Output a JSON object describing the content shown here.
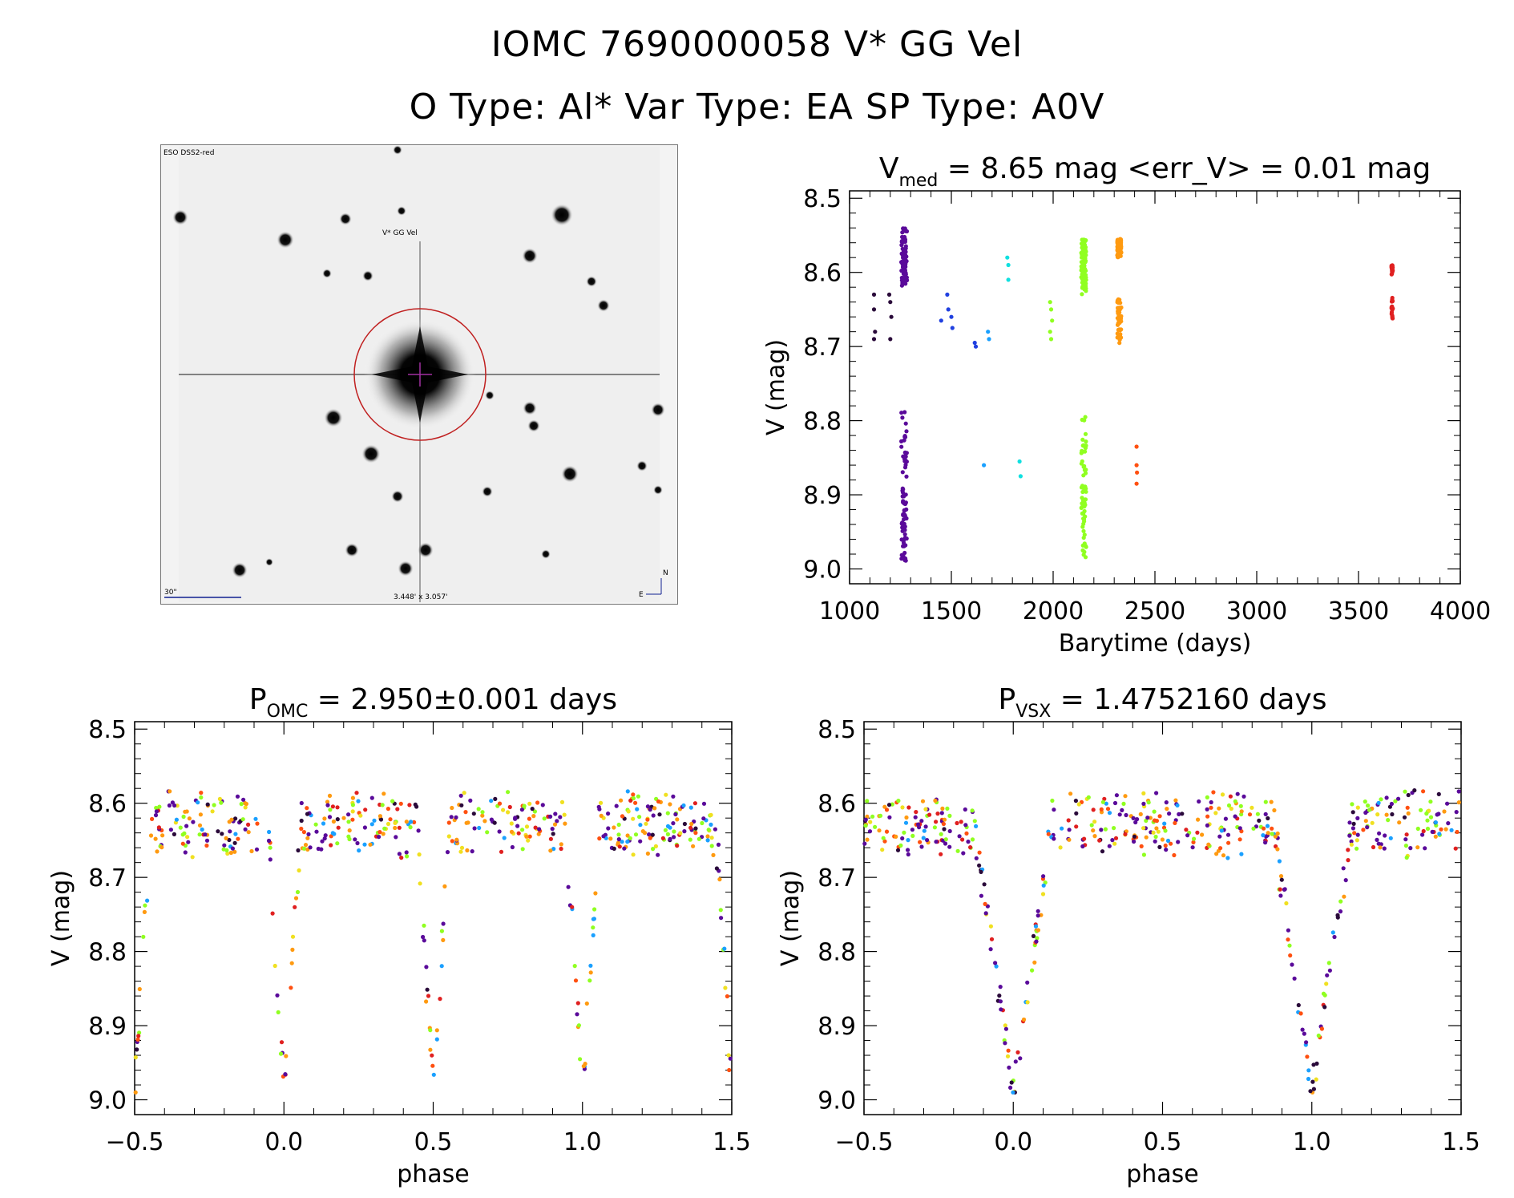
{
  "header": {
    "line1": "IOMC 7690000058   V* GG Vel",
    "line2": "O Type: Al*  Var Type: EA  SP Type: A0V"
  },
  "finder": {
    "survey_label": "ESO DSS2-red",
    "target_label": "V* GG Vel",
    "scale_label": "30\"",
    "fov_label": "3.448' x 3.057'",
    "compass_n": "N",
    "compass_e": "E"
  },
  "colors": {
    "palette": [
      "#2a0a3a",
      "#5a0a9a",
      "#2040e0",
      "#1aa0ff",
      "#10e0e0",
      "#90ff20",
      "#f0e020",
      "#ff9a10",
      "#ff5010",
      "#e02020"
    ]
  },
  "chart_data": [
    {
      "type": "scatter",
      "id": "lightcurve",
      "title": "V",
      "title_sub": "med",
      "title_rest": " = 8.65 mag <err_V> = 0.01 mag",
      "xlabel": "Barytime (days)",
      "ylabel": "V (mag)",
      "xlim": [
        1000,
        4000
      ],
      "ylim": [
        9.02,
        8.49
      ],
      "y_inverted": true,
      "xticks": [
        1000,
        1500,
        2000,
        2500,
        3000,
        3500,
        4000
      ],
      "xtick_labels": [
        "1000",
        "1500",
        "2000",
        "2500",
        "3000",
        "3500",
        "4000"
      ],
      "yticks": [
        8.5,
        8.6,
        8.7,
        8.8,
        8.9,
        9.0
      ],
      "ytick_labels": [
        "8.5",
        "8.6",
        "8.7",
        "8.8",
        "8.9",
        "9.0"
      ],
      "series": [
        {
          "color_index": 0,
          "points": [
            [
              1120,
              8.63
            ],
            [
              1120,
              8.65
            ],
            [
              1125,
              8.68
            ],
            [
              1120,
              8.69
            ],
            [
              1200,
              8.64
            ],
            [
              1205,
              8.66
            ],
            [
              1200,
              8.69
            ],
            [
              1195,
              8.63
            ]
          ]
        },
        {
          "color_index": 1,
          "note": "dense season",
          "x_center": 1268,
          "x_spread": 14,
          "y_range": [
            8.54,
            8.99
          ],
          "count": 160
        },
        {
          "color_index": 2,
          "points": [
            [
              1450,
              8.665
            ],
            [
              1480,
              8.63
            ],
            [
              1485,
              8.65
            ],
            [
              1500,
              8.66
            ],
            [
              1505,
              8.675
            ],
            [
              1615,
              8.695
            ],
            [
              1620,
              8.7
            ]
          ]
        },
        {
          "color_index": 3,
          "points": [
            [
              1680,
              8.68
            ],
            [
              1685,
              8.69
            ],
            [
              1660,
              8.86
            ]
          ]
        },
        {
          "color_index": 4,
          "points": [
            [
              1775,
              8.58
            ],
            [
              1780,
              8.59
            ],
            [
              1780,
              8.61
            ],
            [
              1835,
              8.855
            ],
            [
              1840,
              8.875
            ]
          ]
        },
        {
          "color_index": 5,
          "points": [
            [
              1985,
              8.64
            ],
            [
              1990,
              8.65
            ],
            [
              1985,
              8.68
            ],
            [
              1990,
              8.69
            ],
            [
              1995,
              8.665
            ]
          ]
        },
        {
          "color_index": 5,
          "note": "dense season",
          "x_center": 2150,
          "x_spread": 12,
          "y_range": [
            8.555,
            8.985
          ],
          "count": 150
        },
        {
          "color_index": 7,
          "note": "dense season",
          "x_center": 2325,
          "x_spread": 10,
          "y_range": [
            8.555,
            8.7
          ],
          "count": 110
        },
        {
          "color_index": 8,
          "points": [
            [
              2410,
              8.835
            ],
            [
              2410,
              8.86
            ],
            [
              2412,
              8.87
            ],
            [
              2410,
              8.885
            ]
          ]
        },
        {
          "color_index": 9,
          "note": "dense season",
          "x_center": 3665,
          "x_spread": 3,
          "y_range": [
            8.59,
            8.665
          ],
          "count": 40
        }
      ]
    },
    {
      "type": "scatter",
      "id": "phase_omc",
      "title": "P",
      "title_sub": "OMC",
      "title_rest": " = 2.950±0.001 days",
      "xlabel": "phase",
      "ylabel": "V (mag)",
      "xlim": [
        -0.5,
        1.5
      ],
      "ylim": [
        9.02,
        8.49
      ],
      "period_ratio": 2,
      "xticks": [
        -0.5,
        0.0,
        0.5,
        1.0,
        1.5
      ],
      "xtick_labels": [
        "−0.5",
        "0.0",
        "0.5",
        "1.0",
        "1.5"
      ],
      "yticks": [
        8.5,
        8.6,
        8.7,
        8.8,
        8.9,
        9.0
      ],
      "ytick_labels": [
        "8.5",
        "8.6",
        "8.7",
        "8.8",
        "8.9",
        "9.0"
      ],
      "model": {
        "baseline": 8.63,
        "primary_depth": 0.36,
        "primary_phase": 0.0,
        "secondary_depth": 0.36,
        "secondary_phase": 0.5,
        "width": 0.055
      }
    },
    {
      "type": "scatter",
      "id": "phase_vsx",
      "title": "P",
      "title_sub": "VSX",
      "title_rest": " = 1.4752160 days",
      "xlabel": "phase",
      "ylabel": "V (mag)",
      "xlim": [
        -0.5,
        1.5
      ],
      "ylim": [
        9.02,
        8.49
      ],
      "period_ratio": 1,
      "xticks": [
        -0.5,
        0.0,
        0.5,
        1.0,
        1.5
      ],
      "xtick_labels": [
        "−0.5",
        "0.0",
        "0.5",
        "1.0",
        "1.5"
      ],
      "yticks": [
        8.5,
        8.6,
        8.7,
        8.8,
        8.9,
        9.0
      ],
      "ytick_labels": [
        "8.5",
        "8.6",
        "8.7",
        "8.8",
        "8.9",
        "9.0"
      ],
      "model": {
        "baseline": 8.63,
        "primary_depth": 0.36,
        "primary_phase": 0.0,
        "width": 0.13
      }
    }
  ]
}
